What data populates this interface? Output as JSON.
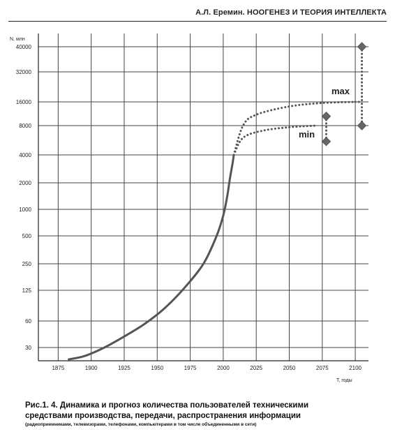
{
  "header": {
    "text": "А.Л. Еремин. НООГЕНЕЗ И ТЕОРИЯ ИНТЕЛЛЕКТА"
  },
  "chart_data": {
    "type": "line",
    "ylabel": "N, млн",
    "xlabel": "T, годы",
    "xlim": [
      1860,
      2110
    ],
    "x_ticks": [
      1875,
      1900,
      1925,
      1950,
      1975,
      2000,
      2025,
      2050,
      2075,
      2100
    ],
    "y_ticks": [
      30,
      60,
      125,
      250,
      500,
      1000,
      2000,
      4000,
      8000,
      16000,
      32000,
      40000
    ],
    "grid": true,
    "series": [
      {
        "style": "solid",
        "points": [
          [
            1883,
            22
          ],
          [
            1895,
            24
          ],
          [
            1910,
            30
          ],
          [
            1925,
            40
          ],
          [
            1940,
            55
          ],
          [
            1955,
            80
          ],
          [
            1970,
            130
          ],
          [
            1985,
            250
          ],
          [
            1995,
            500
          ],
          [
            2000,
            850
          ],
          [
            2003,
            1400
          ],
          [
            2005,
            2200
          ],
          [
            2007,
            3200
          ],
          [
            2008,
            4000
          ]
        ]
      },
      {
        "name": "max",
        "style": "dotted",
        "points": [
          [
            2008,
            4000
          ],
          [
            2015,
            8000
          ],
          [
            2025,
            11000
          ],
          [
            2050,
            14000
          ],
          [
            2075,
            15500
          ],
          [
            2100,
            16000
          ]
        ]
      },
      {
        "name": "min",
        "style": "dotted",
        "points": [
          [
            2008,
            4000
          ],
          [
            2015,
            6000
          ],
          [
            2030,
            7100
          ],
          [
            2050,
            7700
          ],
          [
            2070,
            8000
          ]
        ]
      }
    ],
    "markers": [
      {
        "x": 2078,
        "y": 10500,
        "shape": "diamond"
      },
      {
        "x": 2078,
        "y": 5500,
        "shape": "diamond"
      },
      {
        "x": 2105,
        "y": 40000,
        "shape": "diamond"
      },
      {
        "x": 2105,
        "y": 8000,
        "shape": "diamond"
      }
    ],
    "ranges": [
      {
        "x": 2078,
        "y_from": 5500,
        "y_to": 10500
      },
      {
        "x": 2105,
        "y_from": 8000,
        "y_to": 40000
      }
    ],
    "annotations": [
      {
        "text": "max"
      },
      {
        "text": "min"
      }
    ]
  },
  "caption": {
    "line1": "Рис.1. 4. Динамика и прогноз количества пользователей техническими",
    "line2": "средствами производства, передачи, распространения информации",
    "line3": "(радиоприемниками, телевизорами, телефонами, компьютерами в том числе объединенными в сети)"
  }
}
